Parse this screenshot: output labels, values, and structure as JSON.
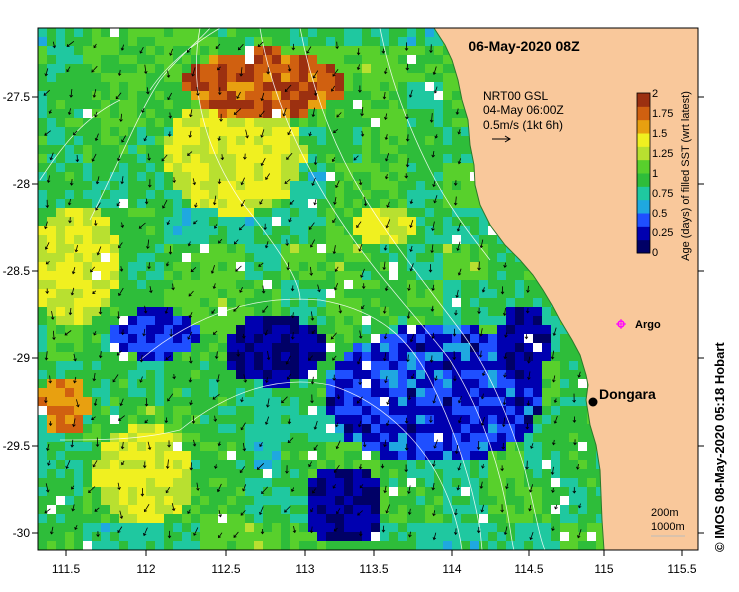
{
  "map": {
    "title": "06-May-2020 08Z",
    "lon_ticks": [
      "111.5",
      "112",
      "112.5",
      "113",
      "113.5",
      "114",
      "114.5",
      "115",
      "115.5"
    ],
    "lat_ticks": [
      "-27.5",
      "-28",
      "-28.5",
      "-29",
      "-29.5",
      "-30"
    ],
    "current_legend": {
      "line1": "NRT00 GSL",
      "line2": "04-May 06:00Z",
      "line3": "0.5m/s (1kt 6h)"
    },
    "colorbar": {
      "label": "Age (days) of filled SST (wrt latest)",
      "ticks": [
        "2",
        "1.75",
        "1.5",
        "1.25",
        "1",
        "0.75",
        "0.5",
        "0.25",
        "0"
      ],
      "colors": [
        "#000066",
        "#0000b0",
        "#1f4fff",
        "#1fa8e0",
        "#1fc8a0",
        "#2ebd3a",
        "#58d02c",
        "#b8e030",
        "#f0f020",
        "#e8a010",
        "#d06010",
        "#9c3010"
      ]
    },
    "labels": {
      "dongara": "Dongara",
      "argo": "Argo"
    },
    "depth_legend": {
      "line1": "200m",
      "line2": "1000m"
    },
    "credit": "© IMOS 08-May-2020 05:18 Hobart",
    "colors": {
      "land": "#f9c89b",
      "contour": "#ffffff",
      "argo_marker": "#ff00ff"
    }
  }
}
